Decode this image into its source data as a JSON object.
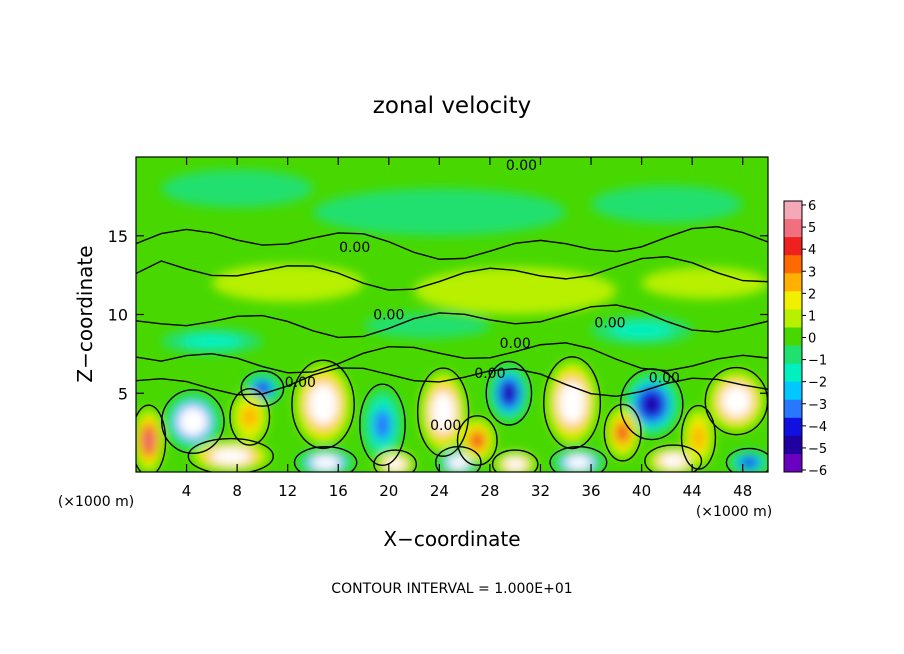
{
  "chart_data": {
    "type": "heatmap",
    "title": "zonal velocity",
    "xlabel": "X−coordinate",
    "ylabel": "Z−coordinate",
    "x_unit_label": "(×1000 m)",
    "z_unit_label": "(×1000 m)",
    "footer": "CONTOUR INTERVAL = 1.000E+01",
    "xlim": [
      0,
      50
    ],
    "ylim": [
      0,
      20
    ],
    "x_ticks": [
      4,
      8,
      12,
      16,
      20,
      24,
      28,
      32,
      36,
      40,
      44,
      48
    ],
    "y_ticks": [
      5,
      10,
      15
    ],
    "x_tick_labels": [
      "4",
      "8",
      "12",
      "16",
      "20",
      "24",
      "28",
      "32",
      "36",
      "40",
      "44",
      "48"
    ],
    "y_tick_labels": [
      "5",
      "10",
      "15"
    ],
    "colorbar": {
      "range": [
        -6,
        6
      ],
      "ticks": [
        6,
        5,
        4,
        3,
        2,
        1,
        0,
        -1,
        -2,
        -3,
        -4,
        -5,
        -6
      ],
      "tick_labels": [
        "6",
        "5",
        "4",
        "3",
        "2",
        "1",
        "0",
        "−1",
        "−2",
        "−3",
        "−4",
        "−5",
        "−6"
      ],
      "colors": [
        "#f4a9b8",
        "#f07080",
        "#ee2020",
        "#ff6a00",
        "#ffb000",
        "#f0f000",
        "#b8f000",
        "#48d800",
        "#20e070",
        "#00f0c0",
        "#00c8ff",
        "#2878ff",
        "#1010e0",
        "#2000a0",
        "#6a00c0"
      ]
    },
    "contour_labels": [
      {
        "text": "0.00",
        "x": 30.5,
        "z": 19.5
      },
      {
        "text": "0.00",
        "x": 17.3,
        "z": 14.3
      },
      {
        "text": "0.00",
        "x": 20.0,
        "z": 10.0
      },
      {
        "text": "0.00",
        "x": 37.5,
        "z": 9.5
      },
      {
        "text": "0.00",
        "x": 30.0,
        "z": 8.2
      },
      {
        "text": "0.00",
        "x": 28.0,
        "z": 6.3
      },
      {
        "text": "0.00",
        "x": 41.8,
        "z": 6.0
      },
      {
        "text": "0.00",
        "x": 13.0,
        "z": 5.7
      },
      {
        "text": "0.00",
        "x": 24.5,
        "z": 3.0
      }
    ],
    "features": [
      {
        "x": 4.5,
        "z": 3.2,
        "v": -6,
        "rx": 2.2,
        "rz": 1.8
      },
      {
        "x": 14.8,
        "z": 4.3,
        "v": 6,
        "rx": 2.2,
        "rz": 2.5
      },
      {
        "x": 19.5,
        "z": 3.0,
        "v": -3,
        "rx": 1.6,
        "rz": 2.3
      },
      {
        "x": 24.3,
        "z": 3.8,
        "v": 6,
        "rx": 1.8,
        "rz": 2.5
      },
      {
        "x": 29.5,
        "z": 5.0,
        "v": -5,
        "rx": 1.6,
        "rz": 1.8
      },
      {
        "x": 34.5,
        "z": 4.4,
        "v": 6,
        "rx": 2.0,
        "rz": 2.6
      },
      {
        "x": 40.8,
        "z": 4.3,
        "v": -5,
        "rx": 2.2,
        "rz": 2.0
      },
      {
        "x": 47.5,
        "z": 4.5,
        "v": 6,
        "rx": 2.2,
        "rz": 1.9
      },
      {
        "x": 10.0,
        "z": 5.3,
        "v": -4,
        "rx": 1.5,
        "rz": 1.0
      },
      {
        "x": 7.5,
        "z": 1.0,
        "v": 6,
        "rx": 3.0,
        "rz": 1.0
      },
      {
        "x": 15.0,
        "z": 0.6,
        "v": -6,
        "rx": 2.2,
        "rz": 0.9
      },
      {
        "x": 20.5,
        "z": 0.5,
        "v": 6,
        "rx": 1.5,
        "rz": 0.8
      },
      {
        "x": 25.5,
        "z": 0.6,
        "v": -6,
        "rx": 1.6,
        "rz": 0.9
      },
      {
        "x": 30.0,
        "z": 0.5,
        "v": 6,
        "rx": 1.6,
        "rz": 0.8
      },
      {
        "x": 35.0,
        "z": 0.6,
        "v": -6,
        "rx": 2.0,
        "rz": 0.9
      },
      {
        "x": 42.5,
        "z": 0.7,
        "v": 6,
        "rx": 2.0,
        "rz": 0.9
      },
      {
        "x": 48.5,
        "z": 0.6,
        "v": -4,
        "rx": 1.6,
        "rz": 0.8
      },
      {
        "x": 1.0,
        "z": 2.0,
        "v": 5,
        "rx": 1.2,
        "rz": 2.0
      },
      {
        "x": 9.0,
        "z": 3.5,
        "v": 3,
        "rx": 1.4,
        "rz": 1.6
      },
      {
        "x": 27.0,
        "z": 2.0,
        "v": 4,
        "rx": 1.4,
        "rz": 1.4
      },
      {
        "x": 38.5,
        "z": 2.5,
        "v": 4,
        "rx": 1.3,
        "rz": 1.6
      },
      {
        "x": 44.5,
        "z": 2.2,
        "v": 3,
        "rx": 1.2,
        "rz": 1.8
      },
      {
        "x": 6.0,
        "z": 8.3,
        "v": -2,
        "rx": 4.0,
        "rz": 0.8
      },
      {
        "x": 23.0,
        "z": 9.3,
        "v": -1,
        "rx": 5.0,
        "rz": 0.8
      },
      {
        "x": 40.0,
        "z": 9.0,
        "v": -2,
        "rx": 4.0,
        "rz": 0.9
      },
      {
        "x": 12.0,
        "z": 12.0,
        "v": 1,
        "rx": 6.0,
        "rz": 1.2
      },
      {
        "x": 30.0,
        "z": 11.5,
        "v": 1,
        "rx": 8.0,
        "rz": 1.5
      },
      {
        "x": 45.0,
        "z": 12.0,
        "v": 1,
        "rx": 5.0,
        "rz": 1.0
      },
      {
        "x": 24.0,
        "z": 16.5,
        "v": -1,
        "rx": 10.0,
        "rz": 1.5
      },
      {
        "x": 8.0,
        "z": 18.0,
        "v": -1,
        "rx": 6.0,
        "rz": 1.2
      },
      {
        "x": 42.0,
        "z": 17.0,
        "v": -1,
        "rx": 6.0,
        "rz": 1.2
      }
    ]
  }
}
